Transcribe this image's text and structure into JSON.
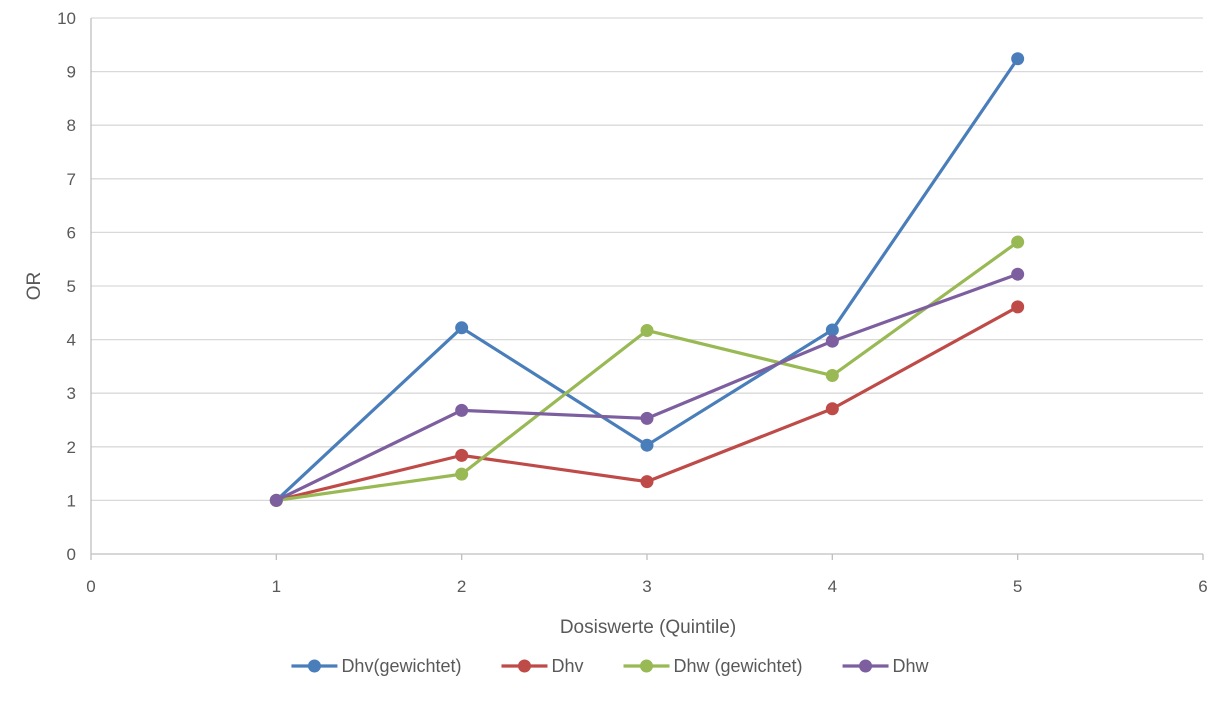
{
  "chart_data": {
    "type": "scatter",
    "title": "",
    "xlabel": "Dosiswerte (Quintile)",
    "ylabel": "OR",
    "xlim": [
      0,
      6
    ],
    "ylim": [
      0,
      10
    ],
    "xticks": [
      0,
      1,
      2,
      3,
      4,
      5,
      6
    ],
    "yticks": [
      0,
      1,
      2,
      3,
      4,
      5,
      6,
      7,
      8,
      9,
      10
    ],
    "grid": "horizontal",
    "legend_position": "bottom",
    "x": [
      1,
      2,
      3,
      4,
      5
    ],
    "series": [
      {
        "name": "Dhv(gewichtet)",
        "color": "#4A7EBB",
        "values": [
          1.0,
          4.22,
          2.03,
          4.18,
          9.24
        ]
      },
      {
        "name": "Dhv",
        "color": "#BE4B48",
        "values": [
          1.0,
          1.84,
          1.35,
          2.71,
          4.61
        ]
      },
      {
        "name": "Dhw (gewichtet)",
        "color": "#98B954",
        "values": [
          1.0,
          1.49,
          4.17,
          3.33,
          5.82
        ]
      },
      {
        "name": "Dhw",
        "color": "#7D5FA0",
        "values": [
          1.0,
          2.68,
          2.53,
          3.97,
          5.22
        ]
      }
    ]
  }
}
